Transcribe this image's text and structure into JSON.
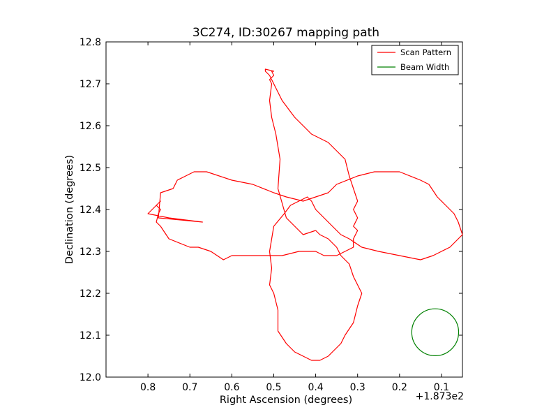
{
  "chart_data": {
    "type": "line",
    "title": "3C274, ID:30267 mapping path",
    "xlabel": "Right Ascension (degrees)",
    "ylabel": "Declination (degrees)",
    "x_offset_label": "+1.873e2",
    "x_ticks": [
      "0.8",
      "0.7",
      "0.6",
      "0.5",
      "0.4",
      "0.3",
      "0.2",
      "0.1"
    ],
    "y_ticks": [
      "12.0",
      "12.1",
      "12.2",
      "12.3",
      "12.4",
      "12.5",
      "12.6",
      "12.7",
      "12.8"
    ],
    "x_tick_values": [
      0.8,
      0.7,
      0.6,
      0.5,
      0.4,
      0.3,
      0.2,
      0.1
    ],
    "y_tick_values": [
      12.0,
      12.1,
      12.2,
      12.3,
      12.4,
      12.5,
      12.6,
      12.7,
      12.8
    ],
    "xlim": [
      0.9,
      0.05
    ],
    "ylim": [
      12.0,
      12.8
    ],
    "x_inverted": true,
    "grid": false,
    "legend_position": "upper right",
    "legend": [
      {
        "label": "Scan Pattern",
        "color": "#ff0000"
      },
      {
        "label": "Beam Width",
        "color": "#008000"
      }
    ],
    "series": [
      {
        "name": "Scan Pattern",
        "color": "#ff0000",
        "x": [
          0.4,
          0.43,
          0.47,
          0.49,
          0.485,
          0.495,
          0.505,
          0.51,
          0.505,
          0.51,
          0.5,
          0.505,
          0.5,
          0.52,
          0.52,
          0.51,
          0.5,
          0.48,
          0.45,
          0.43,
          0.41,
          0.39,
          0.37,
          0.33,
          0.32,
          0.31,
          0.3,
          0.31,
          0.3,
          0.31,
          0.3,
          0.31,
          0.31,
          0.33,
          0.35,
          0.38,
          0.4,
          0.44,
          0.48,
          0.55,
          0.6,
          0.62,
          0.65,
          0.68,
          0.7,
          0.75,
          0.77,
          0.78,
          0.775,
          0.77,
          0.78,
          0.77,
          0.8,
          0.775,
          0.75,
          0.67,
          0.775,
          0.77,
          0.74,
          0.73,
          0.71,
          0.69,
          0.66,
          0.6,
          0.55,
          0.5,
          0.47,
          0.43,
          0.4,
          0.37,
          0.35,
          0.3,
          0.26,
          0.2,
          0.15,
          0.13,
          0.11,
          0.09,
          0.07,
          0.06,
          0.05,
          0.06,
          0.07,
          0.08,
          0.1,
          0.12,
          0.15,
          0.2,
          0.25,
          0.29,
          0.32,
          0.34,
          0.36,
          0.38,
          0.4,
          0.41,
          0.42,
          0.44,
          0.46,
          0.475,
          0.5,
          0.51,
          0.505,
          0.51,
          0.5,
          0.49,
          0.49,
          0.47,
          0.45,
          0.43,
          0.41,
          0.39,
          0.37,
          0.36,
          0.34,
          0.33,
          0.31,
          0.3,
          0.29,
          0.3,
          0.31,
          0.32,
          0.34,
          0.35,
          0.37,
          0.39,
          0.4
        ],
        "y": [
          12.35,
          12.34,
          12.38,
          12.45,
          12.52,
          12.58,
          12.62,
          12.66,
          12.7,
          12.71,
          12.72,
          12.73,
          12.73,
          12.735,
          12.73,
          12.72,
          12.7,
          12.66,
          12.62,
          12.6,
          12.58,
          12.57,
          12.56,
          12.52,
          12.48,
          12.45,
          12.42,
          12.4,
          12.38,
          12.36,
          12.35,
          12.33,
          12.31,
          12.3,
          12.29,
          12.29,
          12.3,
          12.3,
          12.29,
          12.29,
          12.29,
          12.28,
          12.3,
          12.31,
          12.31,
          12.33,
          12.36,
          12.37,
          12.39,
          12.4,
          12.41,
          12.42,
          12.39,
          12.385,
          12.38,
          12.37,
          12.38,
          12.44,
          12.45,
          12.47,
          12.48,
          12.49,
          12.49,
          12.47,
          12.46,
          12.44,
          12.43,
          12.42,
          12.43,
          12.44,
          12.46,
          12.48,
          12.49,
          12.49,
          12.47,
          12.46,
          12.43,
          12.41,
          12.39,
          12.37,
          12.34,
          12.33,
          12.32,
          12.31,
          12.3,
          12.29,
          12.28,
          12.29,
          12.3,
          12.31,
          12.33,
          12.34,
          12.36,
          12.38,
          12.4,
          12.42,
          12.43,
          12.42,
          12.41,
          12.39,
          12.36,
          12.3,
          12.26,
          12.22,
          12.2,
          12.16,
          12.11,
          12.08,
          12.06,
          12.05,
          12.04,
          12.04,
          12.05,
          12.06,
          12.08,
          12.1,
          12.13,
          12.17,
          12.2,
          12.22,
          12.24,
          12.27,
          12.29,
          12.31,
          12.33,
          12.34,
          12.35
        ]
      },
      {
        "name": "Beam Width",
        "color": "#008000",
        "shape": "circle",
        "center": [
          0.115,
          12.107
        ],
        "radius_y": 0.056
      }
    ]
  }
}
